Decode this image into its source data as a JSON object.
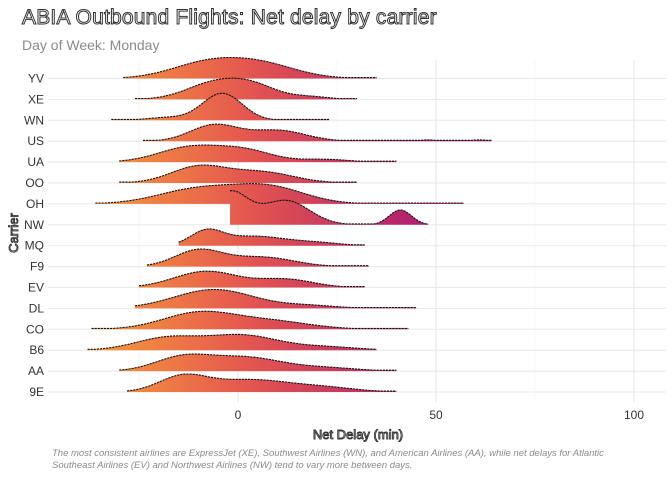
{
  "title": "ABIA Outbound Flights: Net delay by carrier",
  "subtitle": "Day of Week: Monday",
  "caption": "The most consistent airlines are ExpressJet (XE), Southwest Airlines (WN), and American Airlines (AA), while net delays for Atlantic Southeast Airlines (EV) and Northwest Airlines (NW) tend to vary more between days.",
  "chart_data": {
    "type": "ridgeline",
    "title": "ABIA Outbound Flights: Net delay by carrier",
    "subtitle": "Day of Week: Monday",
    "xlabel": "Net Delay (min)",
    "ylabel": "Carrier",
    "xlim": [
      -48,
      107
    ],
    "x_ticks": [
      0,
      50,
      100
    ],
    "grid": true,
    "fill_gradient": [
      "#f8a23a",
      "#e4564f",
      "#b1206f"
    ],
    "categories": [
      "9E",
      "AA",
      "B6",
      "CO",
      "DL",
      "EV",
      "F9",
      "MQ",
      "NW",
      "OH",
      "OO",
      "UA",
      "US",
      "WN",
      "XE",
      "YV"
    ],
    "series": [
      {
        "carrier": "9E",
        "range": [
          -28,
          40
        ],
        "peaks": [
          {
            "mu": -14,
            "sd": 6,
            "h": 0.55
          },
          {
            "mu": 3,
            "sd": 10,
            "h": 0.45
          },
          {
            "mu": 22,
            "sd": 8,
            "h": 0.15
          }
        ]
      },
      {
        "carrier": "AA",
        "range": [
          -30,
          40
        ],
        "peaks": [
          {
            "mu": -14,
            "sd": 7,
            "h": 0.5
          },
          {
            "mu": 2,
            "sd": 9,
            "h": 0.5
          },
          {
            "mu": 22,
            "sd": 8,
            "h": 0.12
          }
        ]
      },
      {
        "carrier": "B6",
        "range": [
          -38,
          35
        ],
        "peaks": [
          {
            "mu": -18,
            "sd": 8,
            "h": 0.45
          },
          {
            "mu": 1,
            "sd": 9,
            "h": 0.55
          },
          {
            "mu": 22,
            "sd": 8,
            "h": 0.12
          }
        ]
      },
      {
        "carrier": "CO",
        "range": [
          -37,
          43
        ],
        "peaks": [
          {
            "mu": -10,
            "sd": 9,
            "h": 0.6
          },
          {
            "mu": 8,
            "sd": 10,
            "h": 0.3
          }
        ]
      },
      {
        "carrier": "DL",
        "range": [
          -26,
          45
        ],
        "peaks": [
          {
            "mu": -6,
            "sd": 10,
            "h": 0.7
          },
          {
            "mu": 18,
            "sd": 7,
            "h": 0.1
          }
        ]
      },
      {
        "carrier": "EV",
        "range": [
          -25,
          32
        ],
        "peaks": [
          {
            "mu": -8,
            "sd": 8,
            "h": 0.6
          },
          {
            "mu": 12,
            "sd": 7,
            "h": 0.3
          }
        ]
      },
      {
        "carrier": "F9",
        "range": [
          -23,
          33
        ],
        "peaks": [
          {
            "mu": -10,
            "sd": 6,
            "h": 0.6
          },
          {
            "mu": 6,
            "sd": 8,
            "h": 0.35
          }
        ]
      },
      {
        "carrier": "MQ",
        "range": [
          -15,
          32
        ],
        "peaks": [
          {
            "mu": -8,
            "sd": 4,
            "h": 0.5
          },
          {
            "mu": 4,
            "sd": 8,
            "h": 0.35
          },
          {
            "mu": 20,
            "sd": 6,
            "h": 0.1
          }
        ]
      },
      {
        "carrier": "NW",
        "range": [
          -2,
          48
        ],
        "peaks": [
          {
            "mu": -2,
            "sd": 4.5,
            "h": 1.2
          },
          {
            "mu": 12,
            "sd": 6,
            "h": 0.9
          },
          {
            "mu": 41,
            "sd": 2.8,
            "h": 0.55
          }
        ]
      },
      {
        "carrier": "OH",
        "range": [
          -36,
          57
        ],
        "peaks": [
          {
            "mu": -10,
            "sd": 10,
            "h": 0.55
          },
          {
            "mu": 8,
            "sd": 9,
            "h": 0.6
          }
        ]
      },
      {
        "carrier": "OO",
        "range": [
          -30,
          30
        ],
        "peaks": [
          {
            "mu": -10,
            "sd": 7,
            "h": 0.6
          },
          {
            "mu": 6,
            "sd": 8,
            "h": 0.4
          }
        ]
      },
      {
        "carrier": "UA",
        "range": [
          -30,
          40
        ],
        "peaks": [
          {
            "mu": -12,
            "sd": 8,
            "h": 0.55
          },
          {
            "mu": 2,
            "sd": 7,
            "h": 0.4
          },
          {
            "mu": 22,
            "sd": 6,
            "h": 0.1
          }
        ]
      },
      {
        "carrier": "US",
        "range": [
          -24,
          64
        ],
        "peaks": [
          {
            "mu": -6,
            "sd": 6,
            "h": 0.6
          },
          {
            "mu": 10,
            "sd": 7,
            "h": 0.4
          },
          {
            "mu": 48,
            "sd": 2,
            "h": 0.05
          },
          {
            "mu": 61,
            "sd": 2,
            "h": 0.05
          }
        ]
      },
      {
        "carrier": "WN",
        "range": [
          -32,
          23
        ],
        "peaks": [
          {
            "mu": -4,
            "sd": 5,
            "h": 1.0
          },
          {
            "mu": -18,
            "sd": 5,
            "h": 0.1
          }
        ]
      },
      {
        "carrier": "XE",
        "range": [
          -26,
          30
        ],
        "peaks": [
          {
            "mu": -6,
            "sd": 7,
            "h": 0.6
          },
          {
            "mu": 4,
            "sd": 6,
            "h": 0.45
          },
          {
            "mu": 18,
            "sd": 5,
            "h": 0.1
          }
        ]
      },
      {
        "carrier": "YV",
        "range": [
          -29,
          35
        ],
        "peaks": [
          {
            "mu": -8,
            "sd": 9,
            "h": 0.55
          },
          {
            "mu": 6,
            "sd": 9,
            "h": 0.5
          }
        ]
      }
    ]
  }
}
